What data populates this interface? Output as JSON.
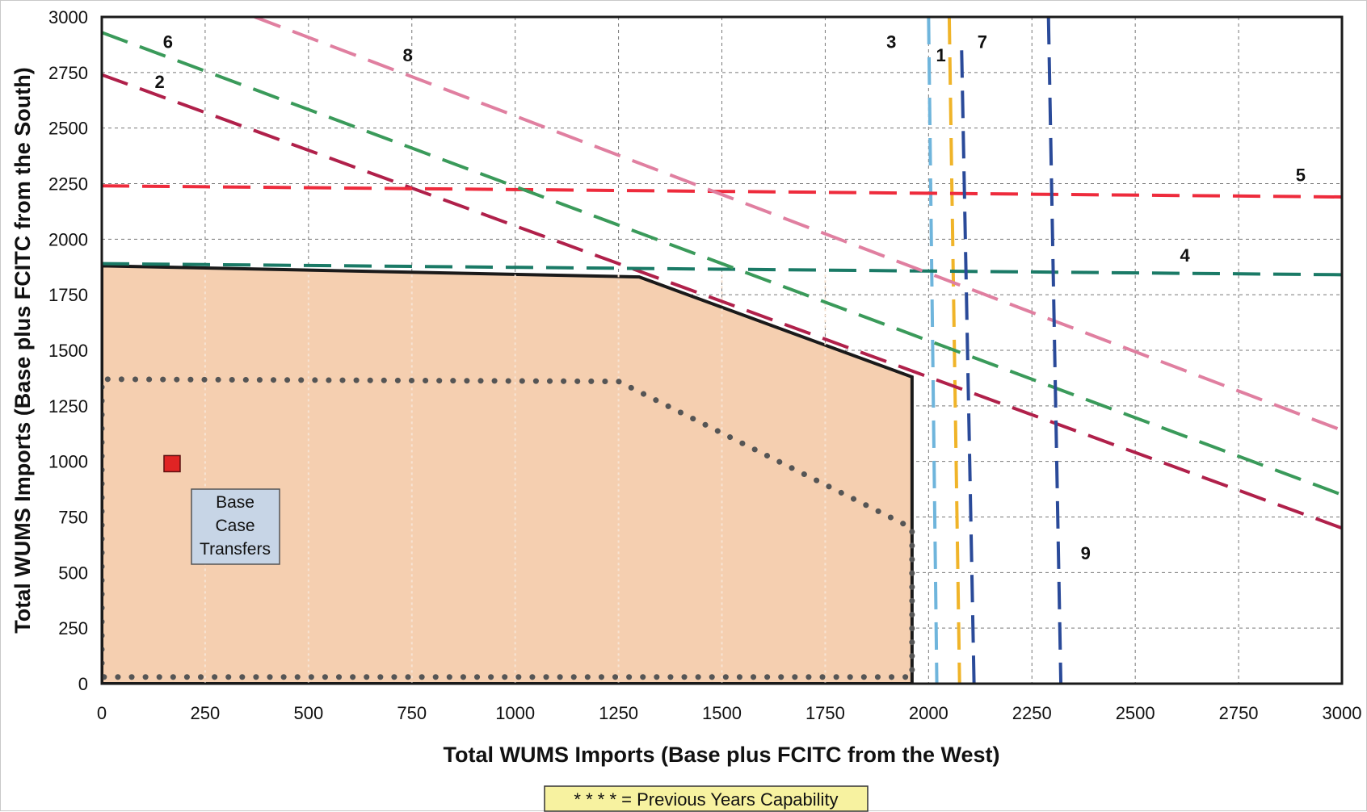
{
  "chart_data": {
    "type": "line",
    "xlabel": "Total WUMS Imports (Base plus FCITC from the West)",
    "ylabel": "Total WUMS Imports (Base plus FCITC from the South)",
    "xlim": [
      0,
      3000
    ],
    "ylim": [
      0,
      3000
    ],
    "x_ticks": [
      0,
      250,
      500,
      750,
      1000,
      1250,
      1500,
      1750,
      2000,
      2250,
      2500,
      2750,
      3000
    ],
    "y_ticks": [
      0,
      250,
      500,
      750,
      1000,
      1250,
      1500,
      1750,
      2000,
      2250,
      2500,
      2750,
      3000
    ],
    "grid": true,
    "region": {
      "points": [
        [
          0,
          0
        ],
        [
          0,
          1880
        ],
        [
          1300,
          1830
        ],
        [
          1960,
          1380
        ],
        [
          1960,
          0
        ]
      ],
      "fill": "#f5cfb0",
      "stroke": "#1a1a1a"
    },
    "previous_years": {
      "points": [
        [
          0,
          30
        ],
        [
          0,
          1370
        ],
        [
          1250,
          1360
        ],
        [
          1960,
          700
        ],
        [
          1960,
          30
        ],
        [
          0,
          30
        ]
      ],
      "color": "#555555"
    },
    "series": [
      {
        "name": "1",
        "color": "#f0b429",
        "x": [
          2050,
          2075
        ],
        "y": [
          3000,
          0
        ],
        "label_at": [
          2030,
          2800
        ]
      },
      {
        "name": "2",
        "color": "#b0204a",
        "x": [
          0,
          3000
        ],
        "y": [
          2740,
          700
        ],
        "label_at": [
          140,
          2680
        ]
      },
      {
        "name": "3",
        "color": "#6fb5dc",
        "x": [
          2000,
          2020
        ],
        "y": [
          3000,
          0
        ],
        "label_at": [
          1910,
          2860
        ]
      },
      {
        "name": "4",
        "color": "#1a7a66",
        "x": [
          0,
          3000
        ],
        "y": [
          1890,
          1840
        ],
        "label_at": [
          2620,
          1900
        ]
      },
      {
        "name": "5",
        "color": "#ee2b3c",
        "x": [
          0,
          3000
        ],
        "y": [
          2240,
          2190
        ],
        "label_at": [
          2900,
          2260
        ]
      },
      {
        "name": "6",
        "color": "#3a9a5a",
        "x": [
          0,
          3000
        ],
        "y": [
          2930,
          850
        ],
        "label_at": [
          160,
          2860
        ]
      },
      {
        "name": "7",
        "color": "#2a4a99",
        "x": [
          2080,
          2110
        ],
        "y": [
          2850,
          0
        ],
        "label_at": [
          2130,
          2860
        ]
      },
      {
        "name": "8",
        "color": "#e07fa0",
        "x": [
          370,
          3000
        ],
        "y": [
          3000,
          1140
        ],
        "label_at": [
          740,
          2800
        ]
      },
      {
        "name": "9",
        "color": "#2a4a99",
        "x": [
          2290,
          2320
        ],
        "y": [
          3000,
          0
        ],
        "label_at": [
          2380,
          560
        ]
      }
    ],
    "base_point": {
      "x": 170,
      "y": 990,
      "color": "#e02424"
    },
    "base_label": {
      "lines": [
        "Base",
        "Case",
        "Transfers"
      ],
      "bg": "#c7d5e6"
    },
    "footnote": "* * * * = Previous Years Capability",
    "footnote_bg": "#f7f2a0"
  }
}
